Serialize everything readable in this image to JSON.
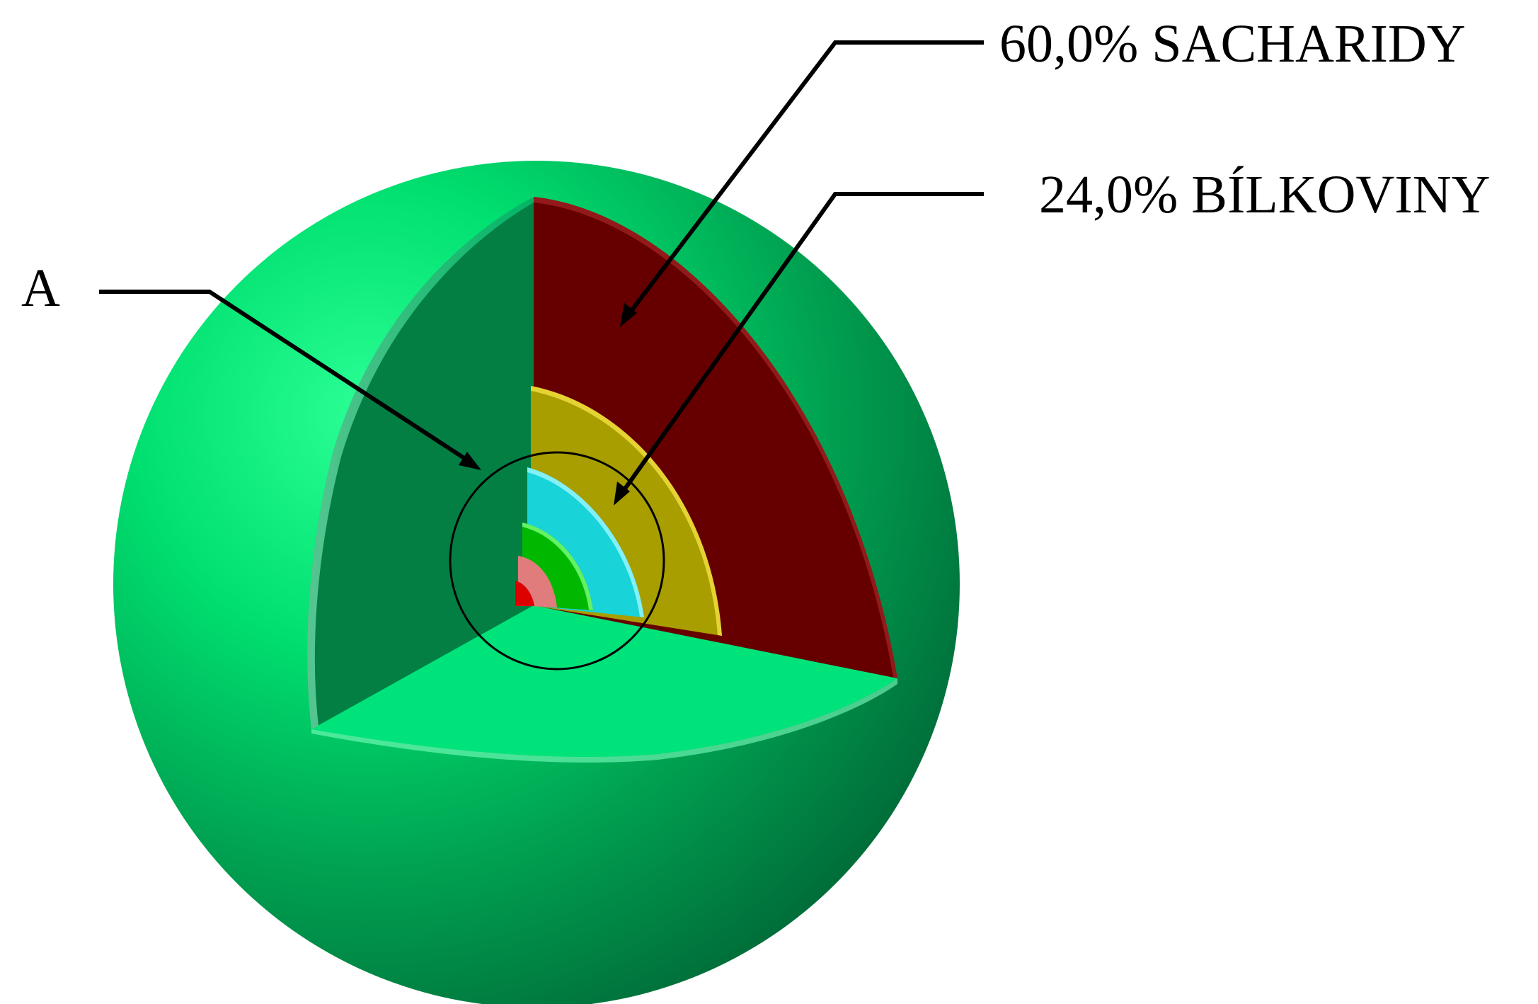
{
  "labels": {
    "a": "A",
    "sacharidy": "60,0%  SACHARIDY",
    "bilkoviny": "24,0%  BÍLKOVINY"
  },
  "colors": {
    "sphere_light": "#00e878",
    "sphere_dark": "#007a40",
    "cut_face_dark": "#037f44",
    "cut_face_light": "#00e37a",
    "layer_sacharidy": "#660000",
    "layer_bilkoviny": "#a89e00",
    "layer_cyan": "#18d3d8",
    "layer_green": "#00b800",
    "layer_pink": "#e07c7c",
    "layer_red": "#dd0000"
  }
}
